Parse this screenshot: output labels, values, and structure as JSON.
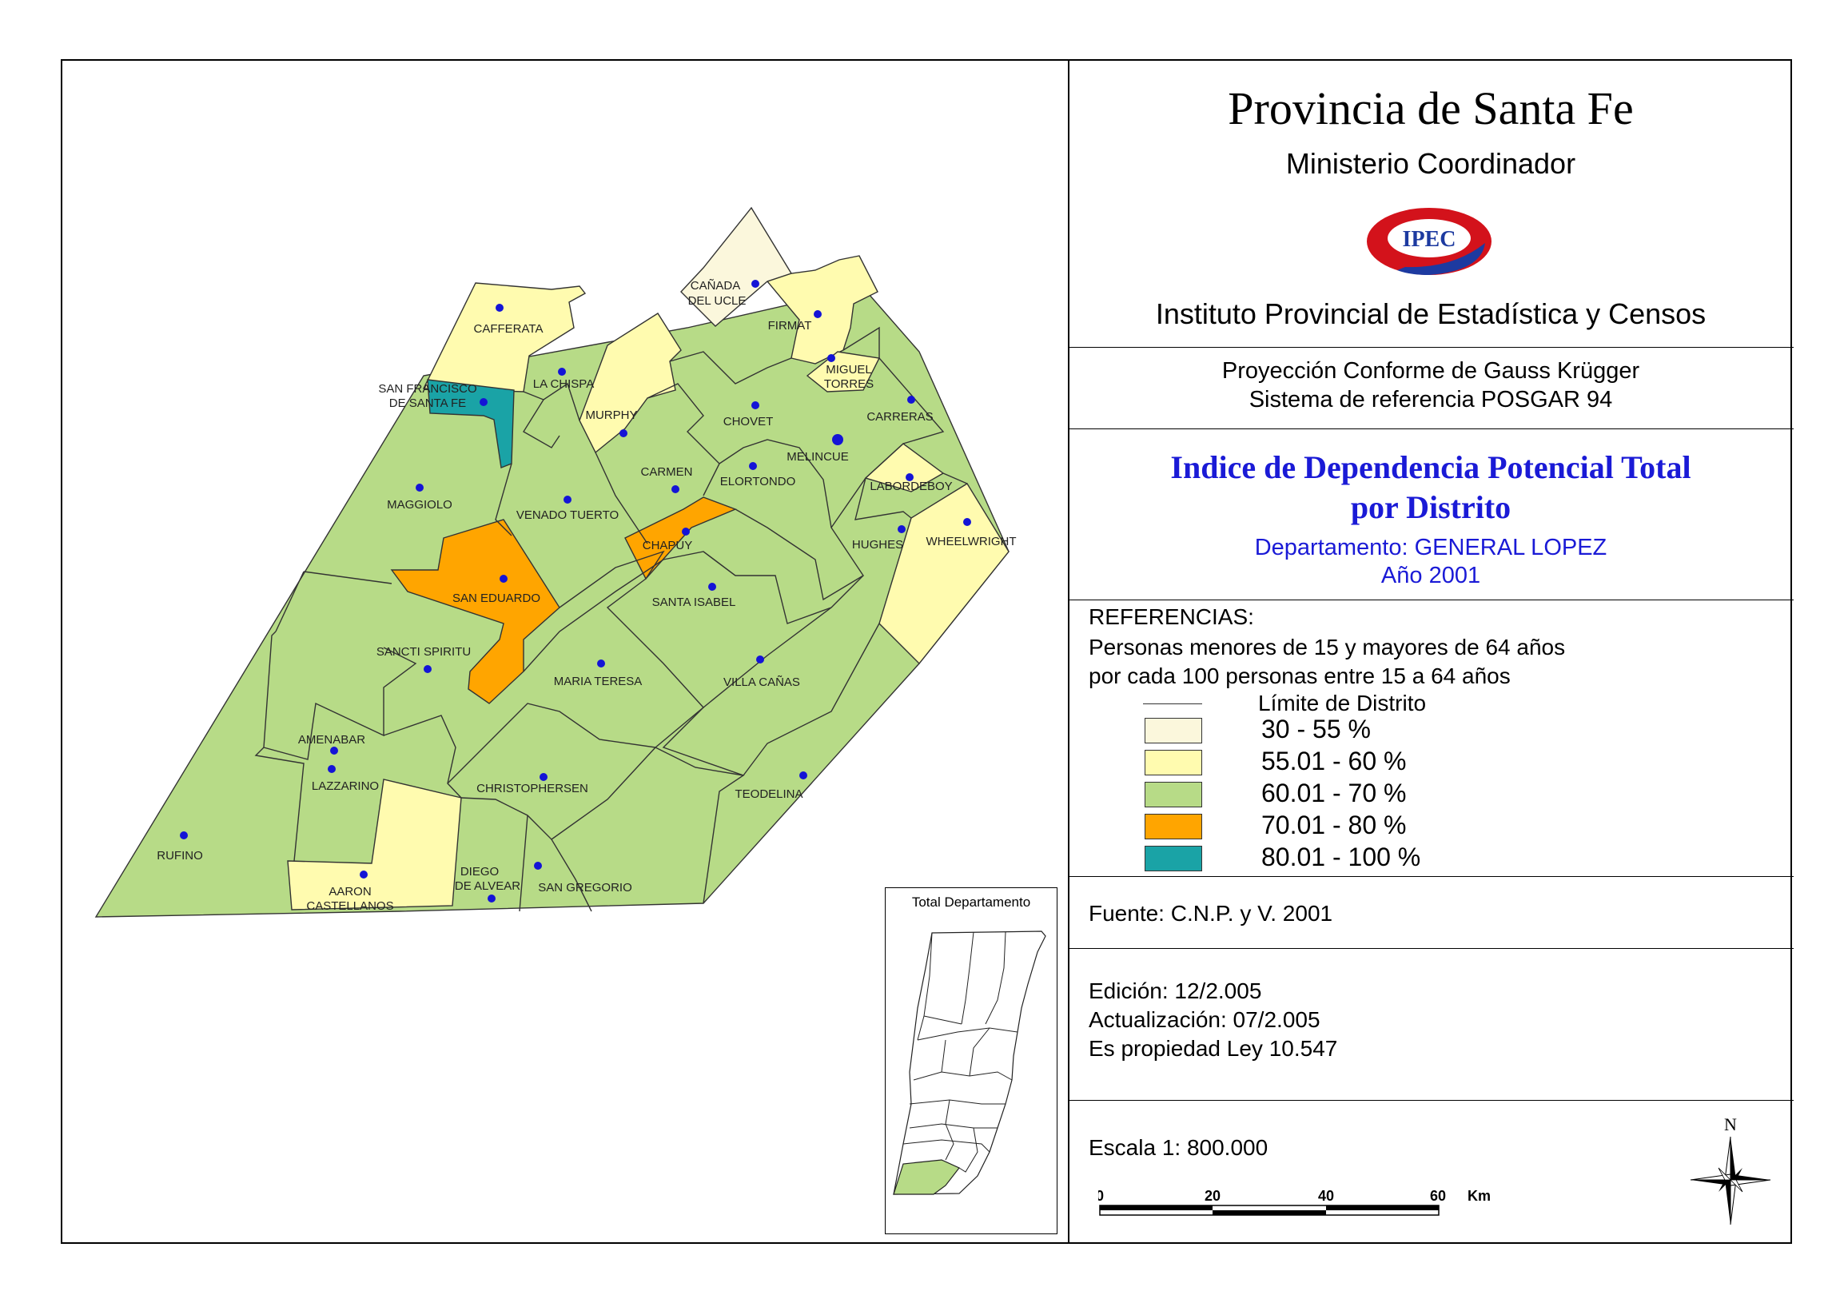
{
  "header": {
    "province": "Provincia de Santa Fe",
    "ministry": "Ministerio Coordinador",
    "logo_text": "IPEC",
    "institute": "Instituto Provincial de Estadística y Censos"
  },
  "projection": {
    "line1": "Proyección Conforme de Gauss Krügger",
    "line2": "Sistema de referencia POSGAR 94"
  },
  "map_title": {
    "line1": "Indice de Dependencia Potencial Total",
    "line2": "por Distrito",
    "department": "Departamento:  GENERAL LOPEZ",
    "year": "Año 2001"
  },
  "legend": {
    "heading": "REFERENCIAS:",
    "desc_line1": "Personas menores de 15 y mayores de 64 años",
    "desc_line2": "por cada 100 personas entre 15 a 64 años",
    "boundary": "Límite de Distrito",
    "classes": [
      {
        "label": "30 - 55 %",
        "color": "#fbf7dc"
      },
      {
        "label": "55.01 - 60 %",
        "color": "#fffbaf"
      },
      {
        "label": "60.01 - 70 %",
        "color": "#b7db87"
      },
      {
        "label": "70.01 - 80 %",
        "color": "#ffa500"
      },
      {
        "label": "80.01 - 100 %",
        "color": "#1aa3a6"
      }
    ]
  },
  "source": "Fuente:  C.N.P. y V. 2001",
  "edition": {
    "edicion": "Edición:  12/2.005",
    "actualizacion": "Actualización:  07/2.005",
    "propiedad": "Es propiedad Ley 10.547"
  },
  "scale": {
    "text": "Escala 1: 800.000",
    "ticks": [
      "0",
      "20",
      "40",
      "60"
    ],
    "unit": "Km"
  },
  "north_label": "N",
  "inset_title": "Total Departamento",
  "districts": {
    "cafferata": "CAFFERATA",
    "sanfrancisco1": "SAN FRANCISCO",
    "sanfrancisco2": "DE SANTA FE",
    "lachispa": "LA CHISPA",
    "murphy": "MURPHY",
    "canada1": "CAÑADA",
    "canada2": "DEL UCLE",
    "firmat": "FIRMAT",
    "miguel1": "MIGUEL",
    "miguel2": "TORRES",
    "chovet": "CHOVET",
    "carreras": "CARRERAS",
    "melincue": "MELINCUE",
    "carmen": "CARMEN",
    "elortondo": "ELORTONDO",
    "labordeboy": "LABORDEBOY",
    "maggiolo": "MAGGIOLO",
    "venado": "VENADO TUERTO",
    "chapuy": "CHAPUY",
    "hughes": "HUGHES",
    "wheelwright": "WHEELWRIGHT",
    "saneduardo": "SAN EDUARDO",
    "santaisabel": "SANTA ISABEL",
    "sancti": "SANCTI SPIRITU",
    "mariateresa": "MARIA TERESA",
    "villacanas": "VILLA CAÑAS",
    "amenabar": "AMENABAR",
    "lazzarino": "LAZZARINO",
    "christophersen": "CHRISTOPHERSEN",
    "teodelina": "TEODELINA",
    "rufino": "RUFINO",
    "aaron1": "AARON",
    "aaron2": "CASTELLANOS",
    "diego1": "DIEGO",
    "diego2": "DE ALVEAR",
    "sangregorio": "SAN GREGORIO"
  }
}
